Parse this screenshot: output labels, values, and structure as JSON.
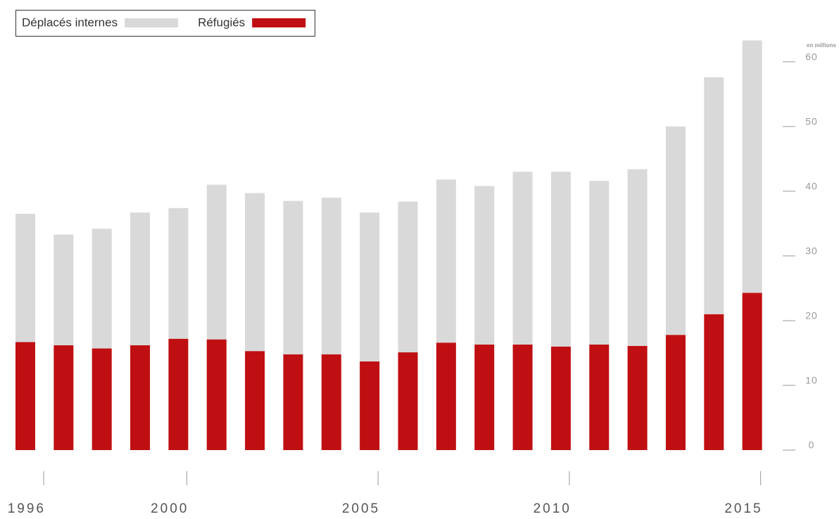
{
  "chart_data": {
    "type": "stacked_bar",
    "y_axis_label": "en millions",
    "categories": [
      "1996",
      null,
      null,
      null,
      "2000",
      null,
      null,
      null,
      null,
      "2005",
      null,
      null,
      null,
      null,
      "2010",
      null,
      null,
      null,
      null,
      "2015"
    ],
    "series": [
      {
        "name": "Réfugiés",
        "color": "#c00f12",
        "values": [
          16.7,
          16.2,
          15.7,
          16.2,
          17.2,
          17.1,
          15.3,
          14.8,
          14.8,
          13.7,
          15.1,
          16.6,
          16.3,
          16.3,
          16.0,
          16.3,
          16.1,
          17.8,
          21.0,
          24.3
        ]
      },
      {
        "name": "Déplacés internes",
        "color": "#d9d9d9",
        "values": [
          19.8,
          17.1,
          18.5,
          20.5,
          20.2,
          23.9,
          24.4,
          23.7,
          24.2,
          23.0,
          23.3,
          25.2,
          24.5,
          26.7,
          27.0,
          25.3,
          27.3,
          32.2,
          36.6,
          39.0
        ]
      }
    ],
    "ylim": [
      0,
      64
    ],
    "yticks": [
      0,
      10,
      20,
      30,
      40,
      50,
      60
    ]
  }
}
